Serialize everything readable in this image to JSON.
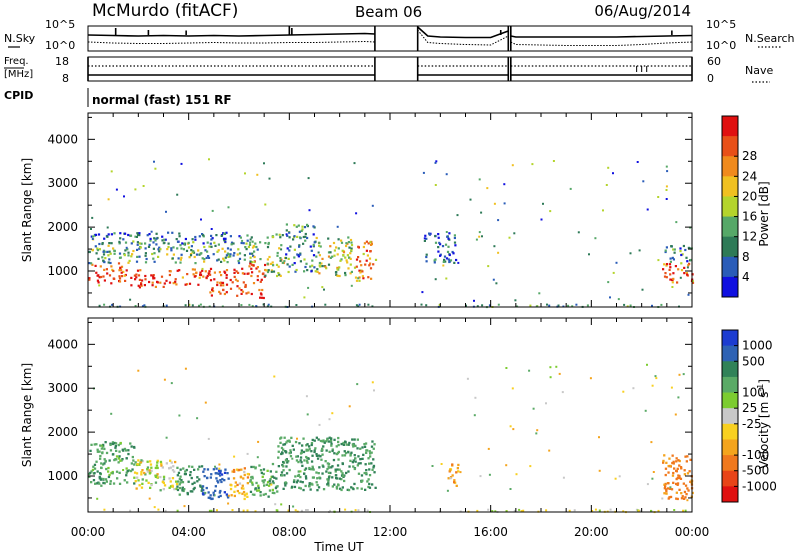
{
  "header": {
    "station": "McMurdo (fitACF)",
    "beam": "Beam 06",
    "date": "06/Aug/2014",
    "mode": "normal (fast) 151 RF"
  },
  "left_labels": {
    "nsky": "N.Sky",
    "freq": "Freq.",
    "freq_unit": "[MHz]",
    "cpid": "CPID"
  },
  "right_labels": {
    "nsearch": "N.Search",
    "nave": "Nave"
  },
  "noise_ticks": {
    "top": "10^5",
    "bottom": "10^0"
  },
  "freq_ticks": [
    "18",
    "8"
  ],
  "nave_ticks": [
    "60",
    "0"
  ],
  "x_axis": {
    "label": "Time UT",
    "ticks": [
      "00:00",
      "04:00",
      "08:00",
      "12:00",
      "16:00",
      "20:00",
      "00:00"
    ]
  },
  "y_axis": {
    "label": "Slant Range [km]",
    "ticks": [
      "1000",
      "2000",
      "3000",
      "4000"
    ]
  },
  "power_bar": {
    "label": "Power [dB]",
    "ticks": [
      "4",
      "8",
      "12",
      "16",
      "20",
      "24",
      "28"
    ],
    "colors": [
      "#1010e0",
      "#2a5cb8",
      "#2e7a57",
      "#56a868",
      "#b4d42c",
      "#f0c020",
      "#f08a1c",
      "#e85018",
      "#e01010"
    ]
  },
  "velocity_bar": {
    "label": "Velocity [m s^-1]",
    "ticks": [
      "1000",
      "500",
      "100",
      "25",
      "-25",
      "-100",
      "-500",
      "-1000"
    ],
    "colors": [
      "#1c3cd0",
      "#2e62b4",
      "#318258",
      "#5aaa66",
      "#7ccc30",
      "#c8c8c8",
      "#f8d020",
      "#f4a41c",
      "#f0781c",
      "#e84418",
      "#e01010"
    ]
  },
  "chart_data": [
    {
      "type": "line",
      "title": "N.Sky / N.Search",
      "x": [
        0,
        1,
        2,
        3,
        4,
        5,
        6,
        7,
        8,
        9,
        10,
        11,
        11.4,
        13.1,
        13.5,
        14,
        15,
        16,
        16.7,
        16.8,
        17,
        18,
        19,
        20,
        21,
        22,
        23,
        24
      ],
      "series": [
        {
          "name": "N.Sky",
          "values": [
            3.2,
            3.1,
            3.0,
            3.1,
            3.0,
            3.1,
            3.0,
            3.1,
            3.2,
            3.3,
            3.4,
            3.5,
            3.4,
            4.8,
            3.0,
            2.8,
            2.7,
            2.7,
            4.0,
            3.0,
            2.8,
            2.8,
            2.8,
            2.8,
            2.8,
            2.9,
            3.0,
            3.1
          ]
        },
        {
          "name": "N.Search",
          "values": [
            1.8,
            1.6,
            1.5,
            1.5,
            1.6,
            1.7,
            1.6,
            1.6,
            1.7,
            1.7,
            1.8,
            1.9,
            1.8,
            4.2,
            1.7,
            1.5,
            1.3,
            1.2,
            3.0,
            1.8,
            1.3,
            1.2,
            1.1,
            1.1,
            1.1,
            1.3,
            1.6,
            1.8
          ]
        }
      ],
      "ylim": [
        0,
        5
      ]
    },
    {
      "type": "line",
      "title": "Freq / Nave",
      "x": [
        0,
        11.4,
        13.1,
        16.7,
        16.8,
        24
      ],
      "series": [
        {
          "name": "Freq.",
          "values": [
            8,
            8,
            8,
            8,
            8,
            8
          ]
        },
        {
          "name": "Nave",
          "values": [
            40,
            40,
            40,
            40,
            40,
            40
          ]
        }
      ],
      "ylim": [
        8,
        18
      ]
    },
    {
      "type": "heatmap",
      "title": "Power [dB]",
      "xlabel": "Time UT",
      "ylabel": "Slant Range [km]",
      "xlim": [
        0,
        24
      ],
      "ylim": [
        180,
        4600
      ],
      "zlim": [
        0,
        30
      ],
      "patches": [
        {
          "t": [
            0.0,
            1.5
          ],
          "r": [
            700,
            1200
          ],
          "v": 26
        },
        {
          "t": [
            1.5,
            3.0
          ],
          "r": [
            650,
            1050
          ],
          "v": 27
        },
        {
          "t": [
            3.0,
            4.8
          ],
          "r": [
            700,
            1100
          ],
          "v": 25
        },
        {
          "t": [
            4.8,
            6.2
          ],
          "r": [
            450,
            1100
          ],
          "v": 27
        },
        {
          "t": [
            6.2,
            7.0
          ],
          "r": [
            400,
            1250
          ],
          "v": 26
        },
        {
          "t": [
            0.0,
            7.0
          ],
          "r": [
            1200,
            1700
          ],
          "v": 11
        },
        {
          "t": [
            0.0,
            6.5
          ],
          "r": [
            1650,
            1900
          ],
          "v": 6
        },
        {
          "t": [
            7.0,
            7.8
          ],
          "r": [
            900,
            1900
          ],
          "v": 14
        },
        {
          "t": [
            7.8,
            9.0
          ],
          "r": [
            1000,
            2100
          ],
          "v": 9
        },
        {
          "t": [
            9.0,
            10.6
          ],
          "r": [
            900,
            1800
          ],
          "v": 15
        },
        {
          "t": [
            10.6,
            11.4
          ],
          "r": [
            800,
            1700
          ],
          "v": 22
        },
        {
          "t": [
            13.3,
            14.6
          ],
          "r": [
            1200,
            1900
          ],
          "v": 5
        },
        {
          "t": [
            22.8,
            24.0
          ],
          "r": [
            700,
            1200
          ],
          "v": 25
        },
        {
          "t": [
            22.8,
            24.0
          ],
          "r": [
            1200,
            1600
          ],
          "v": 9
        }
      ]
    },
    {
      "type": "heatmap",
      "title": "Velocity [m s^-1]",
      "xlabel": "Time UT",
      "ylabel": "Slant Range [km]",
      "xlim": [
        0,
        24
      ],
      "ylim": [
        180,
        4600
      ],
      "patches": [
        {
          "t": [
            0.0,
            1.8
          ],
          "r": [
            800,
            1800
          ],
          "v": 200
        },
        {
          "t": [
            1.8,
            3.5
          ],
          "r": [
            700,
            1400
          ],
          "v": 0
        },
        {
          "t": [
            3.5,
            4.5
          ],
          "r": [
            600,
            1300
          ],
          "v": 300
        },
        {
          "t": [
            4.5,
            5.6
          ],
          "r": [
            500,
            1200
          ],
          "v": 900
        },
        {
          "t": [
            5.6,
            6.4
          ],
          "r": [
            500,
            1200
          ],
          "v": -150
        },
        {
          "t": [
            6.4,
            7.5
          ],
          "r": [
            550,
            1300
          ],
          "v": 200
        },
        {
          "t": [
            7.5,
            11.4
          ],
          "r": [
            700,
            1900
          ],
          "v": 250
        },
        {
          "t": [
            14.2,
            14.7
          ],
          "r": [
            800,
            1300
          ],
          "v": -150
        },
        {
          "t": [
            22.8,
            24.0
          ],
          "r": [
            500,
            1500
          ],
          "v": -300
        }
      ]
    }
  ]
}
